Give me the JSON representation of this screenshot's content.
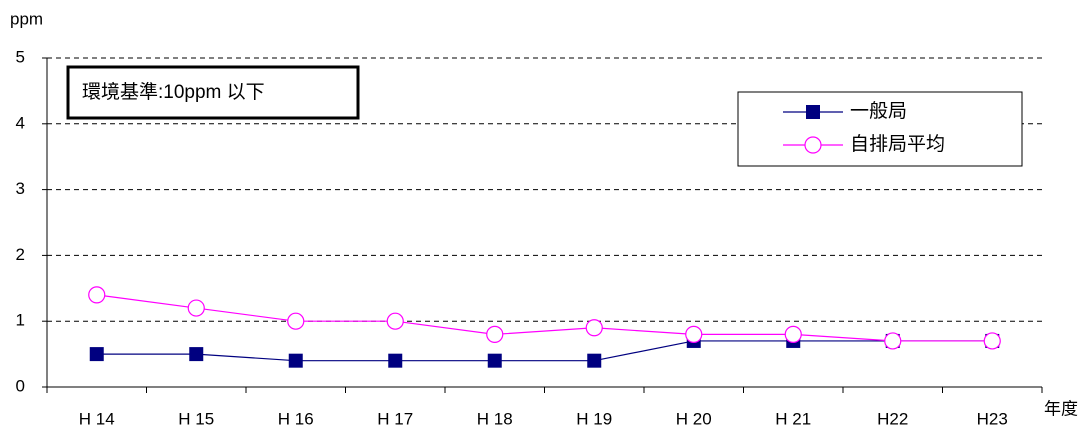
{
  "chart_data": {
    "type": "line",
    "y_label": "ppm",
    "x_label": "年度",
    "annotation": "環境基準:10ppm 以下",
    "categories": [
      "H 14",
      "H 15",
      "H 16",
      "H 17",
      "H 18",
      "H 19",
      "H 20",
      "H 21",
      "H22",
      "H23"
    ],
    "series": [
      {
        "name": "一般局",
        "color": "#000080",
        "marker": "square",
        "values": [
          0.5,
          0.5,
          0.4,
          0.4,
          0.4,
          0.4,
          0.7,
          0.7,
          0.7,
          0.7
        ]
      },
      {
        "name": "自排局平均",
        "color": "#ff00ff",
        "marker": "circle",
        "values": [
          1.4,
          1.2,
          1.0,
          1.0,
          0.8,
          0.9,
          0.8,
          0.8,
          0.7,
          0.7
        ]
      }
    ],
    "ylim": [
      0,
      5
    ],
    "yticks": [
      0,
      1,
      2,
      3,
      4,
      5
    ],
    "grid": true,
    "legend": "upper right"
  }
}
